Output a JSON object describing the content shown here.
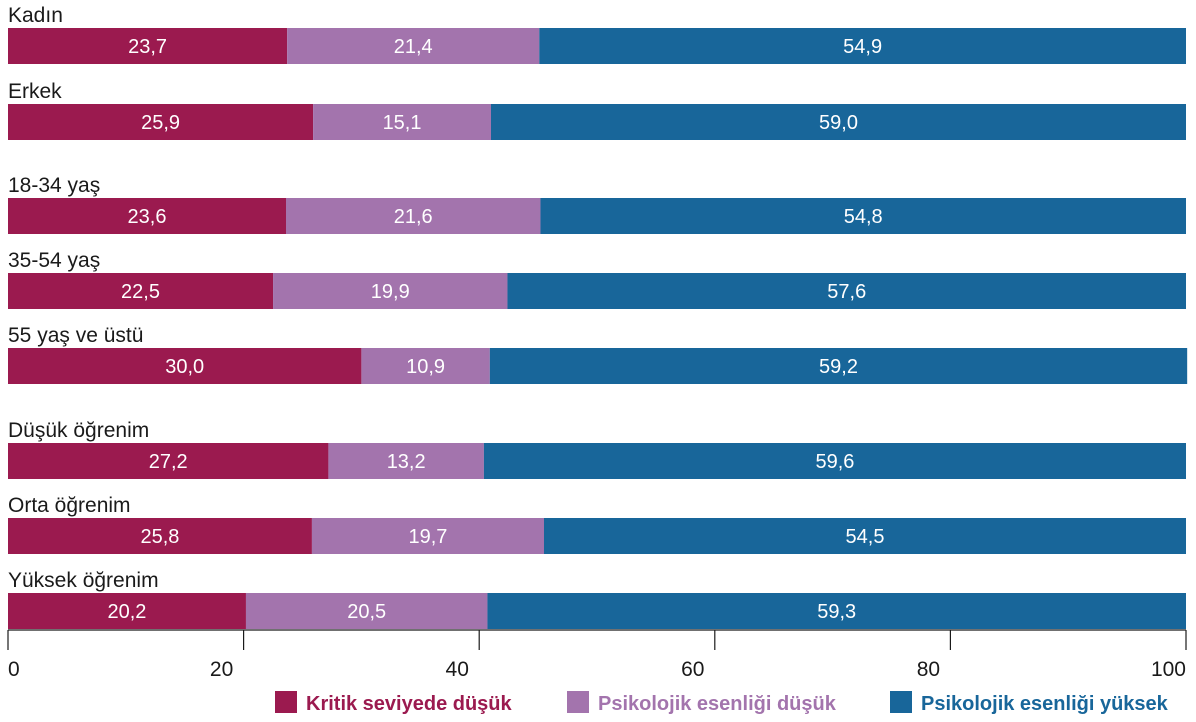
{
  "chart_data": {
    "type": "bar",
    "orientation": "horizontal",
    "stacked": true,
    "categories": [
      "Kadın",
      "Erkek",
      "18-34 yaş",
      "35-54 yaş",
      "55 yaş ve üstü",
      "Düşük öğrenim",
      "Orta öğrenim",
      "Yüksek öğrenim"
    ],
    "series": [
      {
        "name": "Kritik seviyede düşük",
        "color": "#9b1a4f",
        "values": [
          23.7,
          25.9,
          23.6,
          22.5,
          30.0,
          27.2,
          25.8,
          20.2
        ],
        "labels": [
          "23,7",
          "25,9",
          "23,6",
          "22,5",
          "30,0",
          "27,2",
          "25,8",
          "20,2"
        ]
      },
      {
        "name": "Psikolojik esenliği düşük",
        "color": "#a374ad",
        "values": [
          21.4,
          15.1,
          21.6,
          19.9,
          10.9,
          13.2,
          19.7,
          20.5
        ],
        "labels": [
          "21,4",
          "15,1",
          "21,6",
          "19,9",
          "10,9",
          "13,2",
          "19,7",
          "20,5"
        ]
      },
      {
        "name": "Psikolojik esenliği yüksek",
        "color": "#18669a",
        "values": [
          54.9,
          59.0,
          54.8,
          57.6,
          59.2,
          59.6,
          54.5,
          59.3
        ],
        "labels": [
          "54,9",
          "59,0",
          "54,8",
          "57,6",
          "59,2",
          "59,6",
          "54,5",
          "59,3"
        ]
      }
    ],
    "xlim": [
      0,
      100
    ],
    "x_ticks": [
      "0",
      "20",
      "40",
      "60",
      "80",
      "100"
    ],
    "legend_position": "bottom-right",
    "grid": false
  }
}
